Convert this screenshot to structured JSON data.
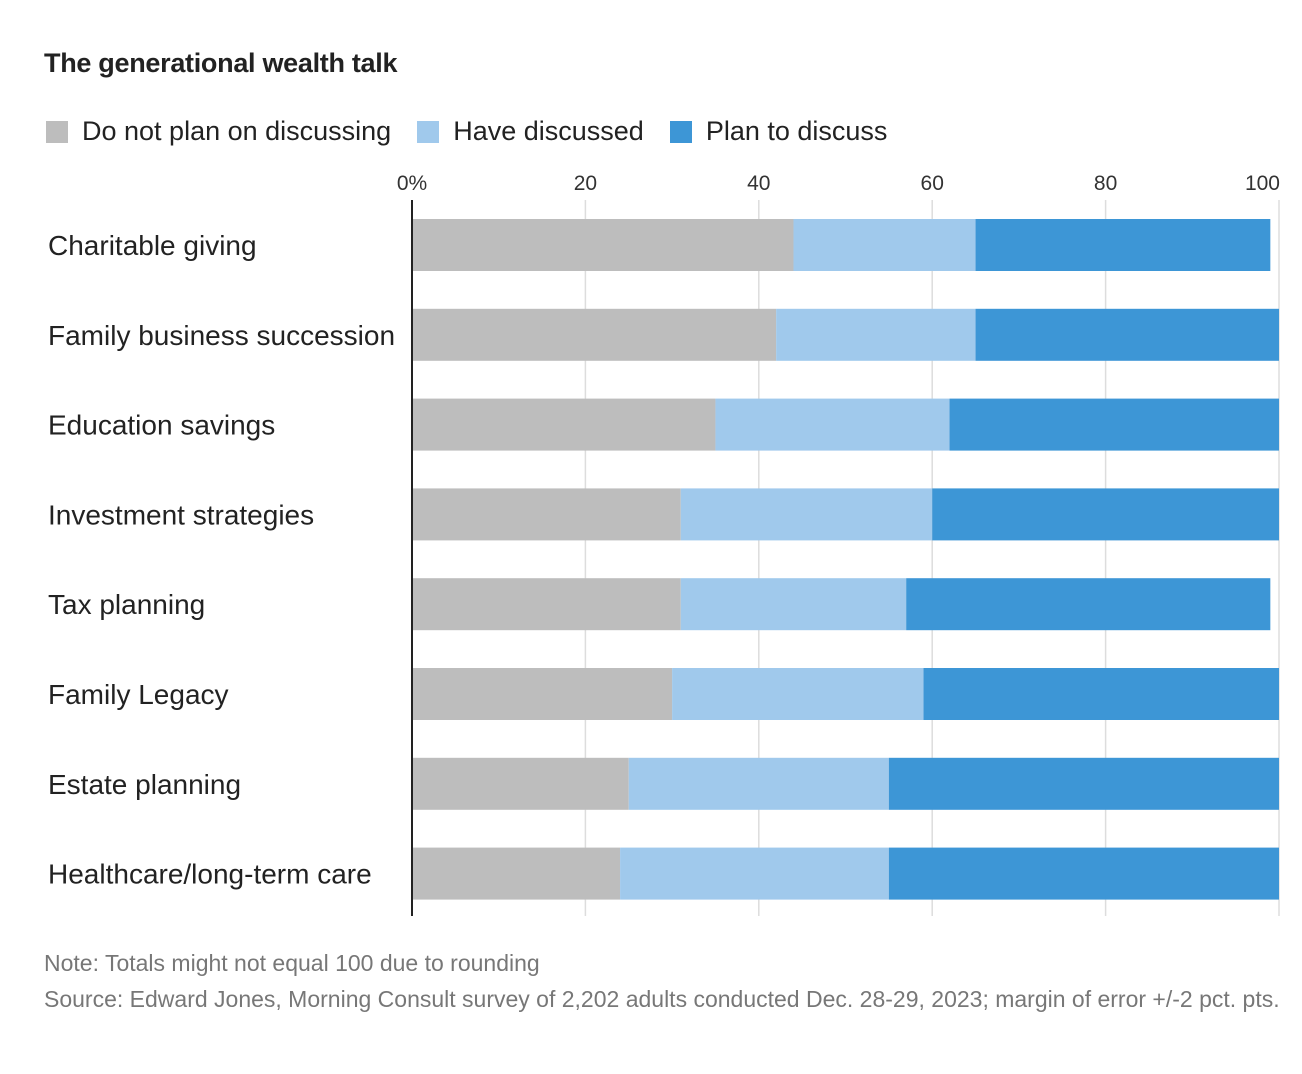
{
  "chart_data": {
    "type": "bar",
    "orientation": "horizontal",
    "stacked": true,
    "title": "The generational wealth talk",
    "categories": [
      "Charitable giving",
      "Family business succession",
      "Education savings",
      "Investment strategies",
      "Tax planning",
      "Family Legacy",
      "Estate planning",
      "Healthcare/long-term care"
    ],
    "series": [
      {
        "name": "Do not plan on discussing",
        "color": "#bdbdbd",
        "values": [
          44,
          42,
          35,
          31,
          31,
          30,
          25,
          24
        ]
      },
      {
        "name": "Have discussed",
        "color": "#a0c9ec",
        "values": [
          21,
          23,
          27,
          29,
          26,
          29,
          30,
          31
        ]
      },
      {
        "name": "Plan to discuss",
        "color": "#3d96d6",
        "values": [
          34,
          35,
          38,
          40,
          42,
          41,
          45,
          45
        ]
      }
    ],
    "xlim": [
      0,
      100
    ],
    "ticks": [
      0,
      20,
      40,
      60,
      80,
      100
    ],
    "tick_labels": [
      "0%",
      "20",
      "40",
      "60",
      "80",
      "100"
    ],
    "grid": true,
    "legend_position": "top-left"
  },
  "footer": {
    "note": "Note: Totals might not equal 100 due to rounding",
    "source": "Source: Edward Jones, Morning Consult survey of 2,202 adults conducted Dec. 28-29, 2023; margin of error +/-2 pct. pts."
  }
}
